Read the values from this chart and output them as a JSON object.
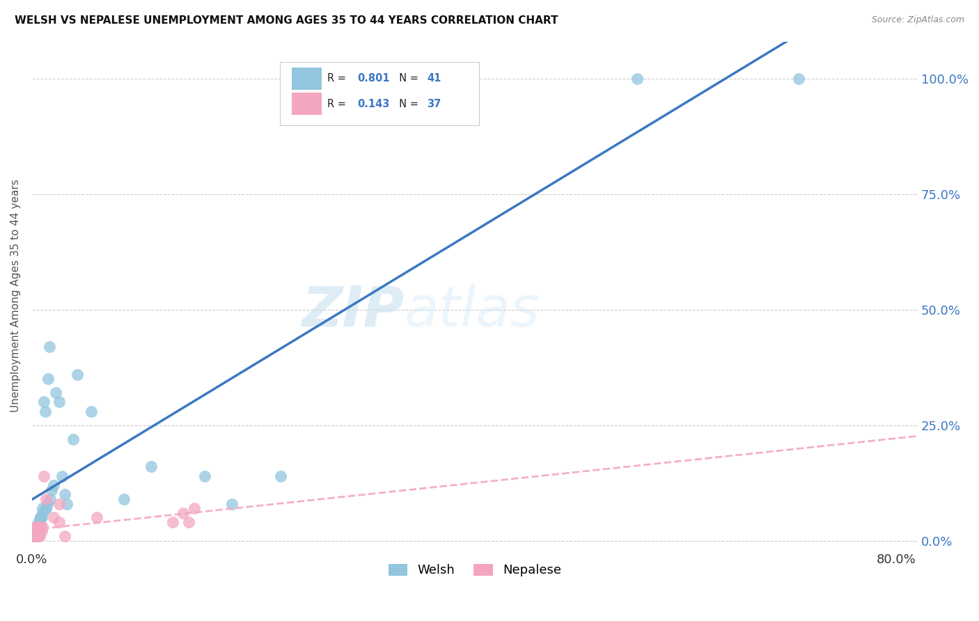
{
  "title": "WELSH VS NEPALESE UNEMPLOYMENT AMONG AGES 35 TO 44 YEARS CORRELATION CHART",
  "source": "Source: ZipAtlas.com",
  "ylabel": "Unemployment Among Ages 35 to 44 years",
  "welsh_R": 0.801,
  "welsh_N": 41,
  "nepalese_R": 0.143,
  "nepalese_N": 37,
  "welsh_color": "#92c5de",
  "nepalese_color": "#f4a6c0",
  "welsh_line_color": "#3b78c3",
  "nepalese_line_color": "#f4a6c0",
  "background_color": "#ffffff",
  "watermark_zip": "ZIP",
  "watermark_atlas": "atlas",
  "xlim": [
    0.0,
    0.82
  ],
  "ylim": [
    -0.02,
    1.08
  ],
  "welsh_x": [
    0.001,
    0.002,
    0.002,
    0.003,
    0.003,
    0.004,
    0.004,
    0.005,
    0.006,
    0.007,
    0.008,
    0.008,
    0.009,
    0.01,
    0.01,
    0.011,
    0.012,
    0.013,
    0.013,
    0.014,
    0.015,
    0.016,
    0.017,
    0.018,
    0.02,
    0.022,
    0.025,
    0.028,
    0.03,
    0.032,
    0.038,
    0.042,
    0.055,
    0.085,
    0.11,
    0.16,
    0.185,
    0.23,
    0.38,
    0.56,
    0.71
  ],
  "welsh_y": [
    0.01,
    0.01,
    0.01,
    0.02,
    0.02,
    0.03,
    0.03,
    0.03,
    0.04,
    0.04,
    0.05,
    0.05,
    0.05,
    0.06,
    0.07,
    0.3,
    0.28,
    0.07,
    0.07,
    0.08,
    0.35,
    0.42,
    0.09,
    0.11,
    0.12,
    0.32,
    0.3,
    0.14,
    0.1,
    0.08,
    0.22,
    0.36,
    0.28,
    0.09,
    0.16,
    0.14,
    0.08,
    0.14,
    0.98,
    1.0,
    1.0
  ],
  "nepalese_x": [
    0.001,
    0.001,
    0.001,
    0.001,
    0.001,
    0.002,
    0.002,
    0.002,
    0.002,
    0.003,
    0.003,
    0.003,
    0.003,
    0.004,
    0.004,
    0.004,
    0.005,
    0.005,
    0.005,
    0.006,
    0.006,
    0.007,
    0.007,
    0.008,
    0.009,
    0.01,
    0.011,
    0.013,
    0.02,
    0.025,
    0.025,
    0.03,
    0.06,
    0.13,
    0.14,
    0.145,
    0.15
  ],
  "nepalese_y": [
    0.01,
    0.01,
    0.01,
    0.02,
    0.03,
    0.01,
    0.01,
    0.01,
    0.02,
    0.01,
    0.01,
    0.01,
    0.02,
    0.01,
    0.01,
    0.02,
    0.01,
    0.02,
    0.03,
    0.01,
    0.02,
    0.01,
    0.02,
    0.03,
    0.02,
    0.03,
    0.14,
    0.09,
    0.05,
    0.04,
    0.08,
    0.01,
    0.05,
    0.04,
    0.06,
    0.04,
    0.07
  ],
  "ytick_values": [
    0.0,
    0.25,
    0.5,
    0.75,
    1.0
  ],
  "ytick_labels": [
    "0.0%",
    "25.0%",
    "50.0%",
    "75.0%",
    "100.0%"
  ],
  "xtick_values": [
    0.0,
    0.2,
    0.4,
    0.6,
    0.8
  ],
  "xtick_labels": [
    "0.0%",
    "",
    "",
    "",
    "80.0%"
  ]
}
